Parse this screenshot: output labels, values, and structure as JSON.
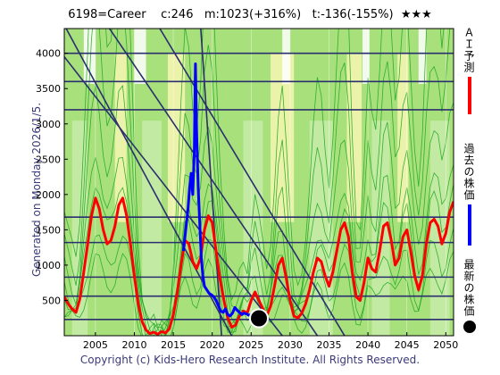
{
  "header": {
    "title": "6198=Career    c:246   m:1023(+316%)   t:-136(-155%)  ★★★"
  },
  "side_label": "Generated on Monday 2026/1/5.",
  "copyright": "Copyright (c) Kids-Hero Research Institute. All Rights Reserved.",
  "legend": {
    "ai": "ＡＩ予測",
    "past": "過去の株価",
    "latest": "最新の株価"
  },
  "colors": {
    "ai": "#ff0000",
    "past": "#0000ff",
    "latest": "#000000",
    "band_green": "#a8e07c",
    "band_yellow": "#f2f5b0",
    "band_light": "#c9ecad",
    "green_line": "#22aa22",
    "navy": "#2a2f6e"
  },
  "chart_data": {
    "type": "line",
    "xlim": [
      2001,
      2051
    ],
    "ylim": [
      0,
      4350
    ],
    "xticks": [
      2005,
      2010,
      2015,
      2020,
      2025,
      2030,
      2035,
      2040,
      2045,
      2050
    ],
    "yticks": [
      500,
      1000,
      1500,
      2000,
      2500,
      3000,
      3500,
      4000
    ],
    "hlines": [
      4000,
      3600,
      3200,
      1680,
      1320,
      830,
      560,
      230
    ],
    "diagonals": [
      [
        [
          2001,
          4400
        ],
        [
          2022.5,
          0
        ]
      ],
      [
        [
          2001,
          3950
        ],
        [
          2029,
          0
        ]
      ],
      [
        [
          2006.5,
          4400
        ],
        [
          2033.5,
          0
        ]
      ],
      [
        [
          2013,
          4400
        ],
        [
          2037,
          0
        ]
      ],
      [
        [
          2018.5,
          4400
        ],
        [
          2021.2,
          0
        ]
      ]
    ],
    "series": [
      {
        "name": "ＡＩ予測",
        "x": [
          2001,
          2001.5,
          2002,
          2002.5,
          2003,
          2003.5,
          2004,
          2004.5,
          2005,
          2005.5,
          2006,
          2006.5,
          2007,
          2007.5,
          2008,
          2008.5,
          2009,
          2009.5,
          2010,
          2010.5,
          2011,
          2011.5,
          2012,
          2012.5,
          2013,
          2013.5,
          2014,
          2014.5,
          2015,
          2015.5,
          2016,
          2016.5,
          2017,
          2017.5,
          2018,
          2018.5,
          2019,
          2019.5,
          2020,
          2020.5,
          2021,
          2021.5,
          2022,
          2022.5,
          2023,
          2023.5,
          2024,
          2024.5,
          2025,
          2025.5,
          2026,
          2026.5,
          2027,
          2027.5,
          2028,
          2028.5,
          2029,
          2029.5,
          2030,
          2030.5,
          2031,
          2031.5,
          2032,
          2032.5,
          2033,
          2033.5,
          2034,
          2034.5,
          2035,
          2035.5,
          2036,
          2036.5,
          2037,
          2037.5,
          2038,
          2038.5,
          2039,
          2039.5,
          2040,
          2040.5,
          2041,
          2041.5,
          2042,
          2042.5,
          2043,
          2043.5,
          2044,
          2044.5,
          2045,
          2045.5,
          2046,
          2046.5,
          2047,
          2047.5,
          2048,
          2048.5,
          2049,
          2049.5,
          2050,
          2050.5,
          2051
        ],
        "values": [
          550,
          450,
          380,
          330,
          520,
          900,
          1300,
          1700,
          1950,
          1800,
          1500,
          1300,
          1350,
          1550,
          1850,
          1950,
          1700,
          1300,
          850,
          450,
          200,
          80,
          30,
          50,
          20,
          60,
          40,
          100,
          300,
          600,
          1000,
          1350,
          1300,
          1050,
          950,
          1100,
          1500,
          1700,
          1600,
          1200,
          800,
          500,
          250,
          120,
          150,
          280,
          350,
          320,
          500,
          620,
          500,
          380,
          280,
          420,
          700,
          1000,
          1100,
          820,
          500,
          280,
          250,
          320,
          450,
          650,
          900,
          1100,
          1050,
          850,
          700,
          900,
          1200,
          1500,
          1600,
          1400,
          900,
          550,
          500,
          750,
          1100,
          950,
          900,
          1200,
          1550,
          1600,
          1350,
          1000,
          1100,
          1400,
          1500,
          1200,
          850,
          650,
          850,
          1300,
          1600,
          1650,
          1550,
          1300,
          1450,
          1750,
          1900
        ]
      },
      {
        "name": "過去の株価",
        "x": [
          2016.3,
          2016.6,
          2016.9,
          2017.1,
          2017.3,
          2017.5,
          2017.7,
          2017.85,
          2018.0,
          2018.2,
          2018.4,
          2018.6,
          2018.8,
          2019.0,
          2019.3,
          2019.6,
          2019.9,
          2020.2,
          2020.5,
          2020.8,
          2021.1,
          2021.4,
          2021.7,
          2022.0,
          2022.3,
          2022.6,
          2022.9,
          2023.2,
          2023.5,
          2023.8,
          2024.1,
          2024.4,
          2024.7,
          2025.0,
          2025.3,
          2025.6,
          2026.0
        ],
        "values": [
          1200,
          1500,
          1800,
          2100,
          2300,
          2000,
          2600,
          3850,
          2900,
          2100,
          1600,
          1100,
          850,
          700,
          650,
          600,
          580,
          550,
          500,
          420,
          350,
          330,
          380,
          300,
          280,
          320,
          400,
          360,
          330,
          300,
          320,
          310,
          290,
          300,
          280,
          260,
          246
        ]
      }
    ],
    "latest": {
      "x": 2026.0,
      "value": 246
    }
  }
}
